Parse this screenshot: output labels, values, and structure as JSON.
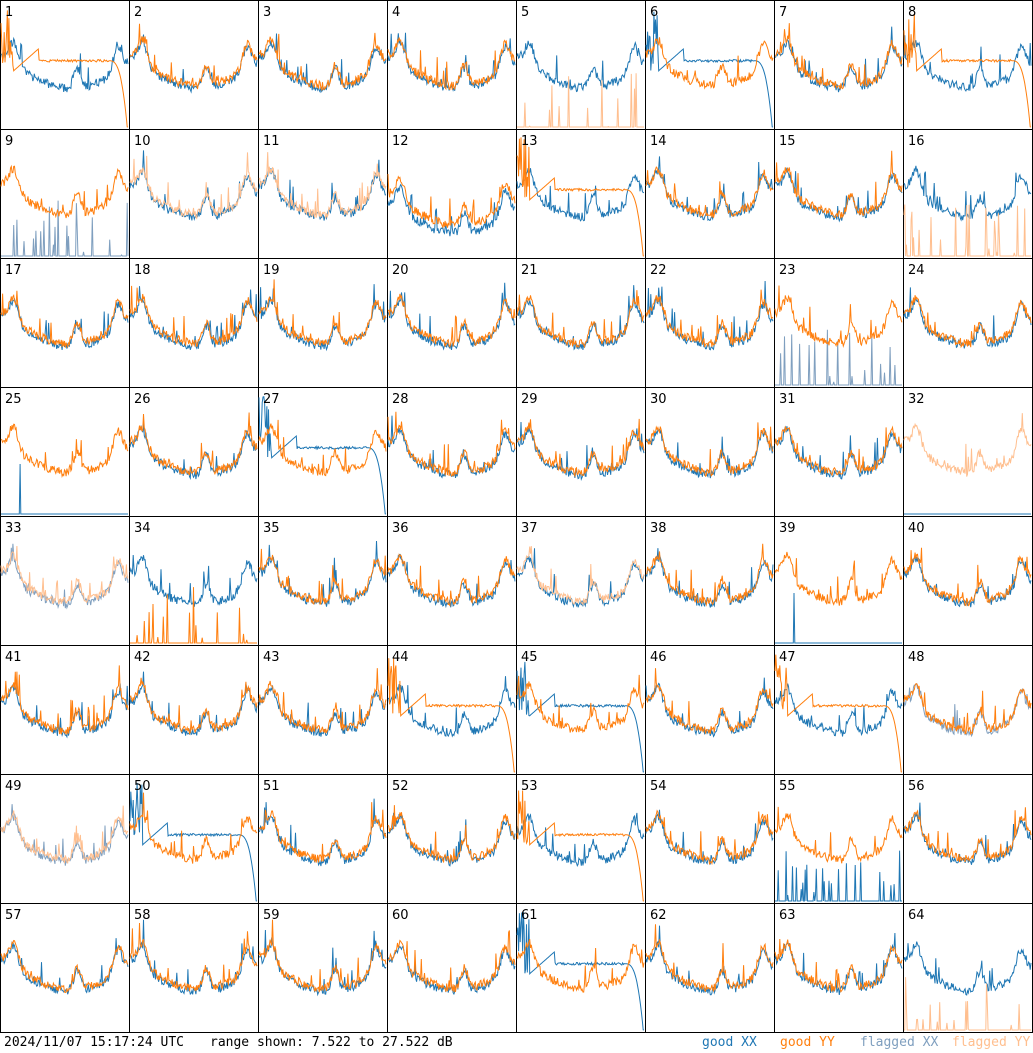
{
  "chart_data": {
    "type": "line",
    "layout": "8x8 small multiples of per-antenna spectra",
    "panel_labels": [
      "1",
      "2",
      "3",
      "4",
      "5",
      "6",
      "7",
      "8",
      "9",
      "10",
      "11",
      "12",
      "13",
      "14",
      "15",
      "16",
      "17",
      "18",
      "19",
      "20",
      "21",
      "22",
      "23",
      "24",
      "25",
      "26",
      "27",
      "28",
      "29",
      "30",
      "31",
      "32",
      "33",
      "34",
      "35",
      "36",
      "37",
      "38",
      "39",
      "40",
      "41",
      "42",
      "43",
      "44",
      "45",
      "46",
      "47",
      "48",
      "49",
      "50",
      "51",
      "52",
      "53",
      "54",
      "55",
      "56",
      "57",
      "58",
      "59",
      "60",
      "61",
      "62",
      "63",
      "64"
    ],
    "range_db": [
      7.522,
      27.522
    ],
    "series": [
      {
        "name": "good XX",
        "color": "#1f77b4"
      },
      {
        "name": "good YY",
        "color": "#ff7f0e"
      },
      {
        "name": "flagged XX",
        "color": "#7f9fbf"
      },
      {
        "name": "flagged YY",
        "color": "#ffbf8f"
      }
    ],
    "panel_styles": {
      "1": "yy_broken",
      "5": "yy_spiky_flagged",
      "6": "xx_broken",
      "8": "yy_broken",
      "9": "xx_spiky_flagged",
      "10": "yy_flagged",
      "11": "yy_flagged",
      "12": "both_low",
      "13": "yy_broken",
      "16": "yy_spiky_flagged",
      "23": "xx_spiky_flagged",
      "25": "xx_spike",
      "27": "xx_broken",
      "32": "yy_flagged_xx_low",
      "33": "both_flagged",
      "34": "yy_spiky",
      "37": "yy_flagged",
      "39": "xx_spike",
      "44": "yy_broken",
      "45": "xx_broken",
      "47": "yy_broken",
      "48": "xx_flagged",
      "49": "both_flagged",
      "50": "xx_broken",
      "53": "yy_broken",
      "55": "xx_spiky",
      "61": "xx_broken",
      "64": "yy_spiky_flagged"
    }
  },
  "footer": {
    "timestamp": "2024/11/07 15:17:24 UTC",
    "range_text": "range shown: 7.522 to 27.522 dB"
  },
  "legend": {
    "good_xx": {
      "label": "good XX",
      "color": "#1f77b4"
    },
    "good_yy": {
      "label": "good YY",
      "color": "#ff7f0e"
    },
    "flagged_xx": {
      "label": "flagged XX",
      "color": "#7f9fbf"
    },
    "flagged_yy": {
      "label": "flagged YY",
      "color": "#ffbf8f"
    }
  }
}
